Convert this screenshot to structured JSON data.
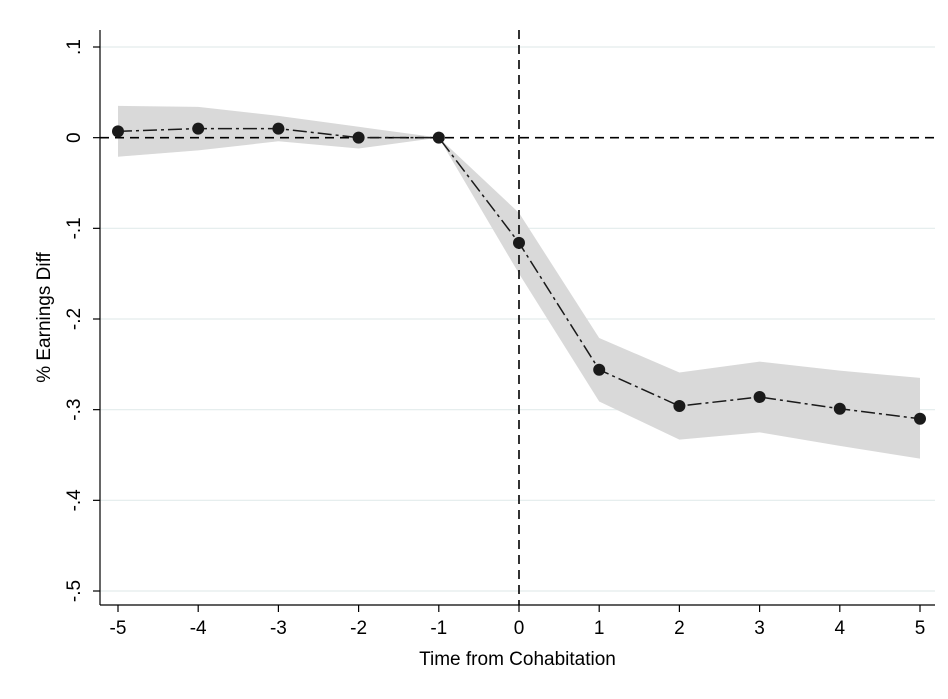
{
  "chart_data": {
    "type": "line",
    "title": "",
    "xlabel": "Time from Cohabitation",
    "ylabel": "% Earnings Diff",
    "xlim": [
      -5,
      5
    ],
    "ylim": [
      -0.5,
      0.1
    ],
    "x_ticks": [
      -5,
      -4,
      -3,
      -2,
      -1,
      0,
      1,
      2,
      3,
      4,
      5
    ],
    "x_tick_labels": [
      "-5",
      "-4",
      "-3",
      "-2",
      "-1",
      "0",
      "1",
      "2",
      "3",
      "4",
      "5"
    ],
    "y_ticks": [
      0.1,
      0,
      -0.1,
      -0.2,
      -0.3,
      -0.4,
      -0.5
    ],
    "y_tick_labels": [
      ".1",
      "0",
      "-.1",
      "-.2",
      "-.3",
      "-.4",
      "-.5"
    ],
    "grid": "horizontal",
    "reference_lines": {
      "x": 0,
      "y": 0,
      "style": "dashed"
    },
    "series": [
      {
        "x": [
          -5,
          -4,
          -3,
          -2,
          -1,
          0,
          1,
          2,
          3,
          4,
          5
        ],
        "y": [
          0.007,
          0.01,
          0.01,
          0.0,
          0.0,
          -0.116,
          -0.256,
          -0.296,
          -0.286,
          -0.299,
          -0.31
        ],
        "ci_lower": [
          -0.021,
          -0.014,
          -0.004,
          -0.012,
          0.0,
          -0.15,
          -0.291,
          -0.333,
          -0.325,
          -0.34,
          -0.354
        ],
        "ci_upper": [
          0.035,
          0.034,
          0.024,
          0.012,
          0.0,
          -0.083,
          -0.221,
          -0.259,
          -0.247,
          -0.257,
          -0.265
        ]
      }
    ],
    "colors": {
      "line": "#1a1a1a",
      "marker": "#1a1a1a",
      "band": "#d9d9d9",
      "grid": "#e3ecec",
      "reference": "#000000"
    }
  }
}
